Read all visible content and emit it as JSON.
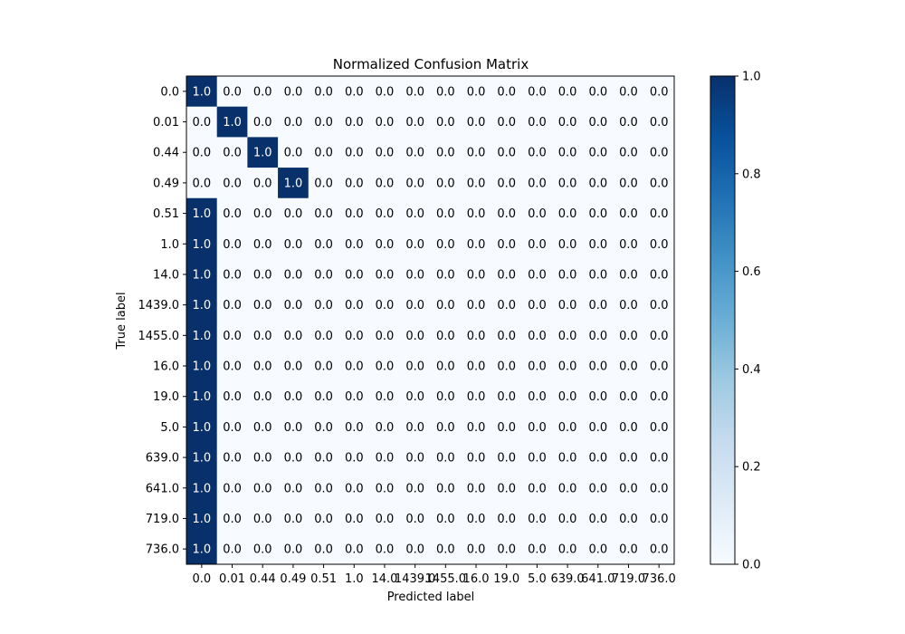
{
  "chart_data": {
    "type": "heatmap",
    "title": "Normalized Confusion Matrix",
    "xlabel": "Predicted label",
    "ylabel": "True label",
    "x_categories": [
      "0.0",
      "0.01",
      "0.44",
      "0.49",
      "0.51",
      "1.0",
      "14.0",
      "1439.0",
      "1455.0",
      "16.0",
      "19.0",
      "5.0",
      "639.0",
      "641.0",
      "719.0",
      "736.0"
    ],
    "y_categories": [
      "0.0",
      "0.01",
      "0.44",
      "0.49",
      "0.51",
      "1.0",
      "14.0",
      "1439.0",
      "1455.0",
      "16.0",
      "19.0",
      "5.0",
      "639.0",
      "641.0",
      "719.0",
      "736.0"
    ],
    "values": [
      [
        1.0,
        0.0,
        0.0,
        0.0,
        0.0,
        0.0,
        0.0,
        0.0,
        0.0,
        0.0,
        0.0,
        0.0,
        0.0,
        0.0,
        0.0,
        0.0
      ],
      [
        0.0,
        1.0,
        0.0,
        0.0,
        0.0,
        0.0,
        0.0,
        0.0,
        0.0,
        0.0,
        0.0,
        0.0,
        0.0,
        0.0,
        0.0,
        0.0
      ],
      [
        0.0,
        0.0,
        1.0,
        0.0,
        0.0,
        0.0,
        0.0,
        0.0,
        0.0,
        0.0,
        0.0,
        0.0,
        0.0,
        0.0,
        0.0,
        0.0
      ],
      [
        0.0,
        0.0,
        0.0,
        1.0,
        0.0,
        0.0,
        0.0,
        0.0,
        0.0,
        0.0,
        0.0,
        0.0,
        0.0,
        0.0,
        0.0,
        0.0
      ],
      [
        1.0,
        0.0,
        0.0,
        0.0,
        0.0,
        0.0,
        0.0,
        0.0,
        0.0,
        0.0,
        0.0,
        0.0,
        0.0,
        0.0,
        0.0,
        0.0
      ],
      [
        1.0,
        0.0,
        0.0,
        0.0,
        0.0,
        0.0,
        0.0,
        0.0,
        0.0,
        0.0,
        0.0,
        0.0,
        0.0,
        0.0,
        0.0,
        0.0
      ],
      [
        1.0,
        0.0,
        0.0,
        0.0,
        0.0,
        0.0,
        0.0,
        0.0,
        0.0,
        0.0,
        0.0,
        0.0,
        0.0,
        0.0,
        0.0,
        0.0
      ],
      [
        1.0,
        0.0,
        0.0,
        0.0,
        0.0,
        0.0,
        0.0,
        0.0,
        0.0,
        0.0,
        0.0,
        0.0,
        0.0,
        0.0,
        0.0,
        0.0
      ],
      [
        1.0,
        0.0,
        0.0,
        0.0,
        0.0,
        0.0,
        0.0,
        0.0,
        0.0,
        0.0,
        0.0,
        0.0,
        0.0,
        0.0,
        0.0,
        0.0
      ],
      [
        1.0,
        0.0,
        0.0,
        0.0,
        0.0,
        0.0,
        0.0,
        0.0,
        0.0,
        0.0,
        0.0,
        0.0,
        0.0,
        0.0,
        0.0,
        0.0
      ],
      [
        1.0,
        0.0,
        0.0,
        0.0,
        0.0,
        0.0,
        0.0,
        0.0,
        0.0,
        0.0,
        0.0,
        0.0,
        0.0,
        0.0,
        0.0,
        0.0
      ],
      [
        1.0,
        0.0,
        0.0,
        0.0,
        0.0,
        0.0,
        0.0,
        0.0,
        0.0,
        0.0,
        0.0,
        0.0,
        0.0,
        0.0,
        0.0,
        0.0
      ],
      [
        1.0,
        0.0,
        0.0,
        0.0,
        0.0,
        0.0,
        0.0,
        0.0,
        0.0,
        0.0,
        0.0,
        0.0,
        0.0,
        0.0,
        0.0,
        0.0
      ],
      [
        1.0,
        0.0,
        0.0,
        0.0,
        0.0,
        0.0,
        0.0,
        0.0,
        0.0,
        0.0,
        0.0,
        0.0,
        0.0,
        0.0,
        0.0,
        0.0
      ],
      [
        1.0,
        0.0,
        0.0,
        0.0,
        0.0,
        0.0,
        0.0,
        0.0,
        0.0,
        0.0,
        0.0,
        0.0,
        0.0,
        0.0,
        0.0,
        0.0
      ],
      [
        1.0,
        0.0,
        0.0,
        0.0,
        0.0,
        0.0,
        0.0,
        0.0,
        0.0,
        0.0,
        0.0,
        0.0,
        0.0,
        0.0,
        0.0,
        0.0
      ]
    ],
    "value_range": [
      0.0,
      1.0
    ],
    "colormap": "Blues",
    "colormap_low": "#f7fbff",
    "colormap_high": "#08306b",
    "colorbar": {
      "ticks": [
        "0.0",
        "0.2",
        "0.4",
        "0.6",
        "0.8",
        "1.0"
      ]
    },
    "grid": false
  }
}
